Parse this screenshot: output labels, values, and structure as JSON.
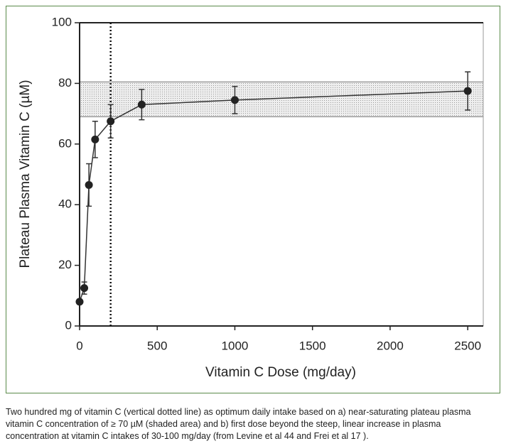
{
  "chart_data": {
    "type": "line",
    "xlabel": "Vitamin C Dose (mg/day)",
    "ylabel": "Plateau Plasma Vitamin C (µM)",
    "x": [
      0,
      30,
      60,
      100,
      200,
      400,
      1000,
      2500
    ],
    "values": [
      8,
      12.5,
      46.5,
      61.5,
      67.5,
      73,
      74.5,
      77.5
    ],
    "errors": [
      null,
      2,
      7,
      6,
      5.5,
      5,
      4.5,
      6.3
    ],
    "color": "#222222",
    "xlim": [
      0,
      2600
    ],
    "xticks": [
      0,
      500,
      1000,
      1500,
      2000,
      2500
    ],
    "ylim": [
      0,
      100
    ],
    "yticks": [
      0,
      20,
      40,
      60,
      80,
      100
    ],
    "band": [
      69,
      80.5
    ],
    "vline": 200
  },
  "caption": "Two hundred mg of vitamin C (vertical dotted line) as optimum daily intake based on a) near-saturating plateau plasma vitamin C concentration of ≥ 70 µM (shaded area) and b) first dose beyond the steep, linear increase in plasma concentration at vitamin C intakes of 30-100 mg/day (from Levine et al 44 and Frei et al 17 )."
}
